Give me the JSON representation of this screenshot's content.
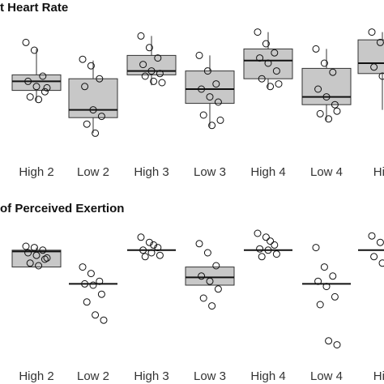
{
  "chart_data": [
    {
      "type": "box",
      "title": "t Heart Rate",
      "categories": [
        "High 2",
        "Low 2",
        "High 3",
        "Low 3",
        "High 4",
        "Low 4",
        "Hig"
      ],
      "ylim": [
        0,
        100
      ],
      "color": "#c8c8c8",
      "boxes": [
        {
          "low": 41,
          "q1": 49,
          "median": 56,
          "q3": 61,
          "high": 81,
          "points": [
            86,
            80,
            60,
            56,
            52,
            48,
            44,
            42,
            51
          ]
        },
        {
          "low": 16,
          "q1": 28,
          "median": 34,
          "q3": 58,
          "high": 72,
          "points": [
            73,
            68,
            58,
            52,
            34,
            29,
            23,
            16
          ]
        },
        {
          "low": 53,
          "q1": 61,
          "median": 64,
          "q3": 76,
          "high": 91,
          "points": [
            91,
            82,
            74,
            69,
            64,
            62,
            60,
            56,
            55
          ]
        },
        {
          "low": 21,
          "q1": 39,
          "median": 50,
          "q3": 64,
          "high": 76,
          "points": [
            76,
            64,
            54,
            50,
            44,
            40,
            30,
            22,
            26
          ]
        },
        {
          "low": 51,
          "q1": 58,
          "median": 72,
          "q3": 81,
          "high": 94,
          "points": [
            94,
            85,
            78,
            74,
            70,
            64,
            58,
            52,
            54
          ]
        },
        {
          "low": 26,
          "q1": 38,
          "median": 44,
          "q3": 66,
          "high": 81,
          "points": [
            81,
            70,
            63,
            50,
            44,
            38,
            31,
            27,
            33
          ]
        },
        {
          "low": 34,
          "q1": 62,
          "median": 70,
          "q3": 88,
          "high": 94,
          "points": [
            94,
            86,
            72,
            67,
            60,
            36
          ]
        }
      ]
    },
    {
      "type": "box",
      "title": "of Perceived Exertion",
      "categories": [
        "High 2",
        "Low 2",
        "High 3",
        "Low 3",
        "High 4",
        "Low 4",
        "Hig"
      ],
      "ylim": [
        0,
        100
      ],
      "color": "#c8c8c8",
      "boxes": [
        {
          "low": 69,
          "q1": 69,
          "median": 81,
          "q3": 82,
          "high": 84,
          "points": [
            85,
            84,
            82,
            80,
            78,
            75,
            72,
            70,
            76
          ]
        },
        {
          "low": 56,
          "q1": 56,
          "median": 56,
          "q3": 56,
          "high": 56,
          "points": [
            69,
            64,
            58,
            56,
            55,
            48,
            42,
            32,
            28
          ]
        },
        {
          "low": 82,
          "q1": 82,
          "median": 82,
          "q3": 82,
          "high": 82,
          "points": [
            92,
            88,
            84,
            82,
            80,
            78,
            77,
            86
          ]
        },
        {
          "low": 55,
          "q1": 55,
          "median": 61,
          "q3": 69,
          "high": 69,
          "points": [
            87,
            80,
            70,
            62,
            58,
            52,
            45,
            39
          ]
        },
        {
          "low": 82,
          "q1": 82,
          "median": 82,
          "q3": 82,
          "high": 82,
          "points": [
            95,
            92,
            86,
            83,
            82,
            79,
            77,
            89
          ]
        },
        {
          "low": 56,
          "q1": 56,
          "median": 56,
          "q3": 56,
          "high": 56,
          "points": [
            84,
            69,
            62,
            58,
            54,
            46,
            40,
            12,
            9
          ]
        },
        {
          "low": 82,
          "q1": 82,
          "median": 82,
          "q3": 82,
          "high": 82,
          "points": [
            93,
            88,
            82,
            77,
            72,
            70
          ]
        }
      ]
    }
  ]
}
